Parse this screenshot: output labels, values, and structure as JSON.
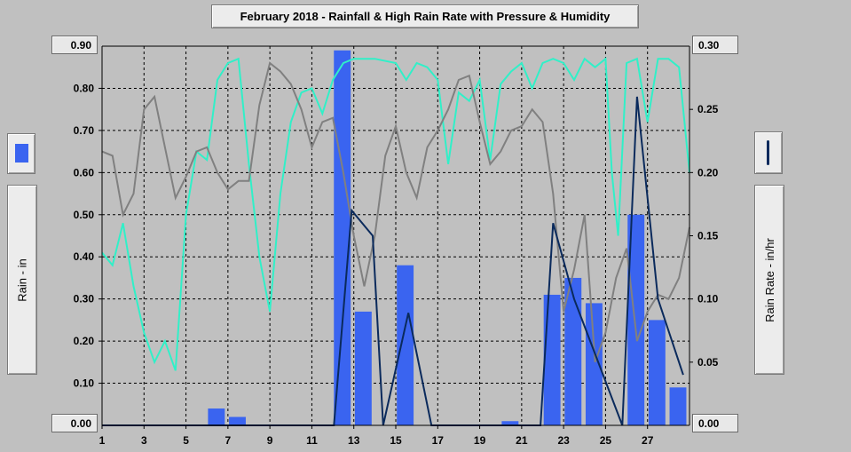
{
  "title": "February 2018 - Rainfall & High Rain Rate with Pressure & Humidity",
  "left_axis_label": "Rain - in",
  "right_axis_label": "Rain Rate - in/hr",
  "colors": {
    "rain_bar": "#3a64f0",
    "rain_rate": "#0a2a5c",
    "humidity": "#30f0c8",
    "pressure": "#808080",
    "plot_bg": "#c0c0c0"
  },
  "chart_data": {
    "type": "bar",
    "title": "February 2018 - Rainfall & High Rain Rate with Pressure & Humidity",
    "xlim": [
      1,
      29
    ],
    "x_ticks": [
      1,
      3,
      5,
      7,
      9,
      11,
      13,
      15,
      17,
      19,
      21,
      23,
      25,
      27
    ],
    "x_tick_labels": [
      "1",
      "3",
      "5",
      "7",
      "9",
      "11",
      "13",
      "15",
      "17",
      "19",
      "21",
      "23",
      "25",
      "27"
    ],
    "y_left": {
      "label": "Rain - in",
      "lim": [
        0,
        0.9
      ],
      "ticks": [
        "0.00",
        "0.10",
        "0.20",
        "0.30",
        "0.40",
        "0.50",
        "0.60",
        "0.70",
        "0.80",
        "0.90"
      ]
    },
    "y_right": {
      "label": "Rain Rate - in/hr",
      "lim": [
        0,
        0.3
      ],
      "ticks": [
        "0.00",
        "0.05",
        "0.10",
        "0.15",
        "0.20",
        "0.25",
        "0.30"
      ]
    },
    "grid": true,
    "series": [
      {
        "name": "Rain",
        "type": "bar",
        "axis": "left",
        "values": [
          0,
          0,
          0,
          0,
          0,
          0.04,
          0.02,
          0,
          0,
          0,
          0,
          0.89,
          0.27,
          0,
          0.38,
          0,
          0,
          0,
          0,
          0.01,
          0,
          0.31,
          0.35,
          0.29,
          0,
          0.5,
          0.25,
          0.09
        ]
      },
      {
        "name": "Rain Rate",
        "type": "line",
        "axis": "right",
        "points": [
          [
            1,
            0
          ],
          [
            12.05,
            0
          ],
          [
            12.9,
            0.17
          ],
          [
            13.9,
            0.15
          ],
          [
            14.4,
            0
          ],
          [
            15.6,
            0.089
          ],
          [
            16.7,
            0
          ],
          [
            21.9,
            0
          ],
          [
            22.5,
            0.16
          ],
          [
            23.5,
            0.1
          ],
          [
            25.8,
            0
          ],
          [
            26.5,
            0.26
          ],
          [
            27.5,
            0.1
          ],
          [
            28.7,
            0.04
          ]
        ]
      },
      {
        "name": "Humidity",
        "type": "line",
        "axis": "none",
        "points": [
          [
            1,
            0.41
          ],
          [
            1.5,
            0.38
          ],
          [
            2,
            0.48
          ],
          [
            2.5,
            0.33
          ],
          [
            3,
            0.22
          ],
          [
            3.5,
            0.15
          ],
          [
            4,
            0.2
          ],
          [
            4.5,
            0.13
          ],
          [
            5,
            0.5
          ],
          [
            5.5,
            0.65
          ],
          [
            6,
            0.63
          ],
          [
            6.5,
            0.82
          ],
          [
            7,
            0.86
          ],
          [
            7.5,
            0.87
          ],
          [
            8,
            0.62
          ],
          [
            8.5,
            0.4
          ],
          [
            9,
            0.27
          ],
          [
            9.5,
            0.55
          ],
          [
            10,
            0.72
          ],
          [
            10.5,
            0.79
          ],
          [
            11,
            0.8
          ],
          [
            11.5,
            0.74
          ],
          [
            12,
            0.82
          ],
          [
            12.5,
            0.86
          ],
          [
            13,
            0.87
          ],
          [
            14,
            0.87
          ],
          [
            15,
            0.86
          ],
          [
            15.5,
            0.82
          ],
          [
            16,
            0.86
          ],
          [
            16.5,
            0.85
          ],
          [
            17,
            0.82
          ],
          [
            17.5,
            0.62
          ],
          [
            18,
            0.79
          ],
          [
            18.5,
            0.77
          ],
          [
            19,
            0.82
          ],
          [
            19.5,
            0.63
          ],
          [
            20,
            0.81
          ],
          [
            20.5,
            0.84
          ],
          [
            21,
            0.86
          ],
          [
            21.5,
            0.8
          ],
          [
            22,
            0.86
          ],
          [
            22.5,
            0.87
          ],
          [
            23,
            0.86
          ],
          [
            23.5,
            0.82
          ],
          [
            24,
            0.87
          ],
          [
            24.5,
            0.85
          ],
          [
            25,
            0.87
          ],
          [
            25.3,
            0.6
          ],
          [
            25.6,
            0.45
          ],
          [
            26,
            0.86
          ],
          [
            26.5,
            0.87
          ],
          [
            27,
            0.72
          ],
          [
            27.5,
            0.87
          ],
          [
            28,
            0.87
          ],
          [
            28.5,
            0.85
          ],
          [
            29,
            0.6
          ]
        ]
      },
      {
        "name": "Pressure",
        "type": "line",
        "axis": "none",
        "points": [
          [
            1,
            0.65
          ],
          [
            1.5,
            0.64
          ],
          [
            2,
            0.5
          ],
          [
            2.5,
            0.55
          ],
          [
            3,
            0.75
          ],
          [
            3.5,
            0.78
          ],
          [
            4,
            0.66
          ],
          [
            4.5,
            0.54
          ],
          [
            5,
            0.59
          ],
          [
            5.5,
            0.65
          ],
          [
            6,
            0.66
          ],
          [
            6.5,
            0.6
          ],
          [
            7,
            0.56
          ],
          [
            7.5,
            0.58
          ],
          [
            8,
            0.58
          ],
          [
            8.5,
            0.76
          ],
          [
            9,
            0.86
          ],
          [
            9.5,
            0.84
          ],
          [
            10,
            0.81
          ],
          [
            10.5,
            0.75
          ],
          [
            11,
            0.66
          ],
          [
            11.5,
            0.72
          ],
          [
            12,
            0.73
          ],
          [
            12.5,
            0.6
          ],
          [
            13,
            0.45
          ],
          [
            13.5,
            0.33
          ],
          [
            14,
            0.45
          ],
          [
            14.5,
            0.64
          ],
          [
            15,
            0.71
          ],
          [
            15.5,
            0.6
          ],
          [
            16,
            0.54
          ],
          [
            16.5,
            0.66
          ],
          [
            17,
            0.7
          ],
          [
            17.5,
            0.75
          ],
          [
            18,
            0.82
          ],
          [
            18.5,
            0.83
          ],
          [
            19,
            0.72
          ],
          [
            19.5,
            0.62
          ],
          [
            20,
            0.65
          ],
          [
            20.5,
            0.7
          ],
          [
            21,
            0.71
          ],
          [
            21.5,
            0.75
          ],
          [
            22,
            0.72
          ],
          [
            22.5,
            0.55
          ],
          [
            23,
            0.27
          ],
          [
            23.5,
            0.37
          ],
          [
            24,
            0.5
          ],
          [
            24.5,
            0.15
          ],
          [
            25,
            0.22
          ],
          [
            25.5,
            0.35
          ],
          [
            26,
            0.42
          ],
          [
            26.5,
            0.2
          ],
          [
            27,
            0.27
          ],
          [
            27.5,
            0.31
          ],
          [
            28,
            0.3
          ],
          [
            28.5,
            0.35
          ],
          [
            29,
            0.47
          ]
        ]
      }
    ]
  }
}
